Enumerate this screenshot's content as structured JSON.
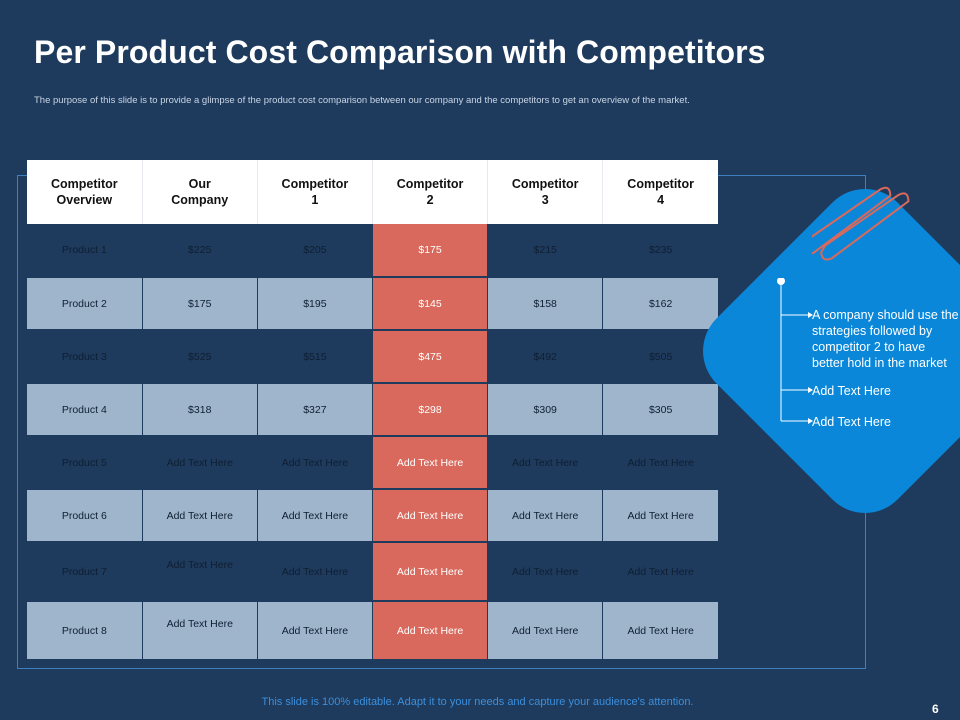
{
  "slide": {
    "title": "Per Product Cost Comparison with Competitors",
    "subtitle": "The purpose of this slide is to provide a glimpse of the product cost comparison between our company and the competitors to get an overview of the market.",
    "footer": "This slide is 100% editable. Adapt it to your needs and capture your audience's attention.",
    "page_number": "6"
  },
  "table": {
    "headers": [
      "Competitor\nOverview",
      "Our\nCompany",
      "Competitor\n1",
      "Competitor\n2",
      "Competitor\n3",
      "Competitor\n4"
    ],
    "rows": [
      [
        "Product 1",
        "$225",
        "$205",
        "$175",
        "$215",
        "$235"
      ],
      [
        "Product 2",
        "$175",
        "$195",
        "$145",
        "$158",
        "$162"
      ],
      [
        "Product 3",
        "$525",
        "$515",
        "$475",
        "$492",
        "$505"
      ],
      [
        "Product 4",
        "$318",
        "$327",
        "$298",
        "$309",
        "$305"
      ],
      [
        "Product 5",
        "Add Text Here",
        "Add Text Here",
        "Add Text Here",
        "Add Text Here",
        "Add Text Here"
      ],
      [
        "Product 6",
        "Add Text Here",
        "Add Text Here",
        "Add Text Here",
        "Add Text Here",
        "Add Text Here"
      ],
      [
        "Product 7",
        "Add Text Here",
        "Add Text Here",
        "Add Text Here",
        "Add Text Here",
        "Add Text Here"
      ],
      [
        "Product 8",
        "Add Text Here",
        "Add Text Here",
        "Add Text Here",
        "Add Text Here",
        "Add Text Here"
      ]
    ],
    "highlight_color": "#d9695c"
  },
  "callout": {
    "items": [
      "A company should use the strategies followed by competitor 2 to have better hold in the market",
      "Add Text Here",
      "Add Text Here"
    ]
  },
  "colors": {
    "background": "#1e3a5c",
    "accent_blue": "#0a87d8",
    "row_light": "#9fb5cb",
    "highlight": "#d9695c"
  }
}
